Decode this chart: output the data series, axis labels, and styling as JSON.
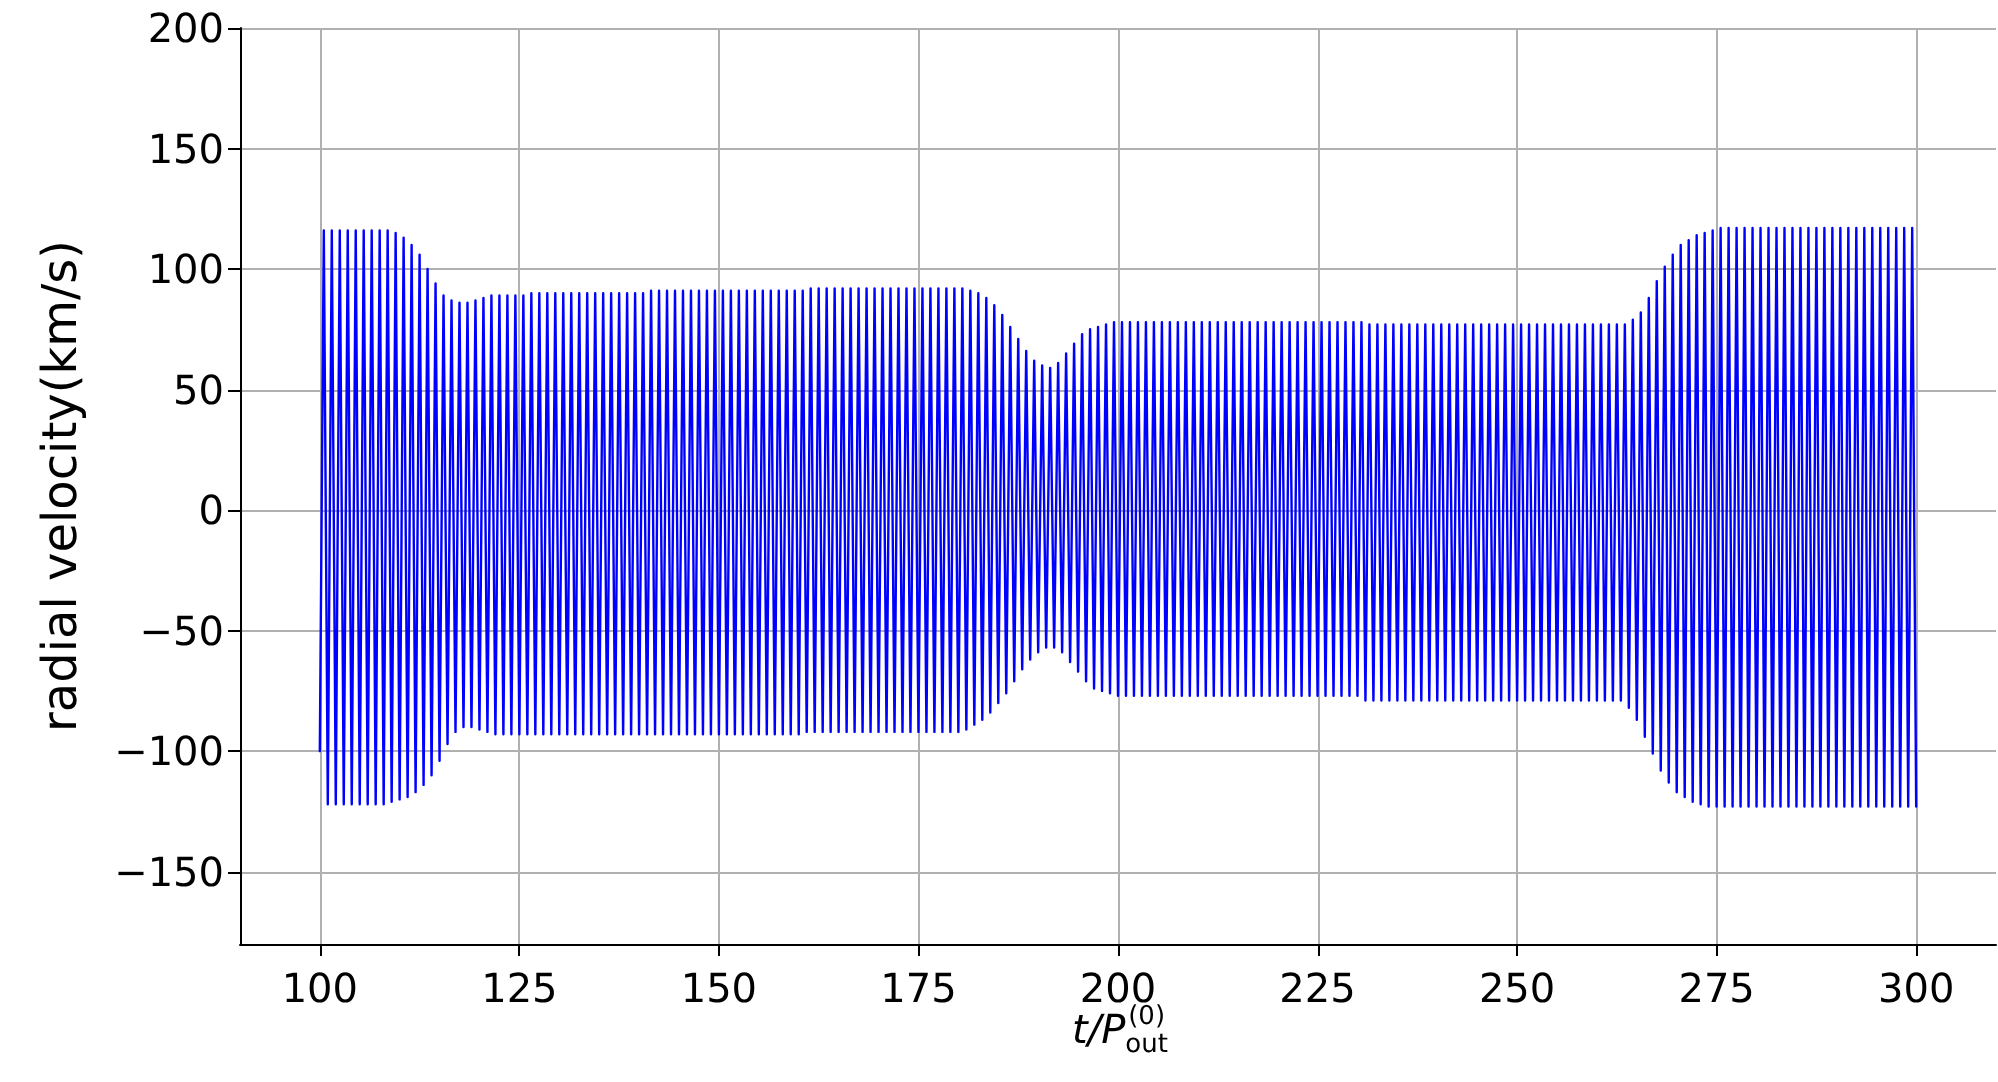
{
  "chart_data": {
    "type": "line",
    "xlabel": "t/P$_{out}$$^{(0)}$",
    "ylabel": "radial velocity(km/s)",
    "xlim": [
      90,
      310
    ],
    "ylim": [
      -180,
      200
    ],
    "xticks": [
      100,
      125,
      150,
      175,
      200,
      225,
      250,
      275,
      300
    ],
    "yticks": [
      -150,
      -100,
      -50,
      0,
      50,
      100,
      150,
      200
    ],
    "grid": true,
    "marker": "none",
    "line_style": "solid",
    "x": [
      100,
      100.5,
      101,
      101.5,
      102,
      102.5,
      103,
      103.5,
      104,
      104.5,
      105,
      105.5,
      106,
      106.5,
      107,
      107.5,
      108,
      108.5,
      109,
      109.5,
      110,
      110.5,
      111,
      111.5,
      112,
      112.5,
      113,
      113.5,
      114,
      114.5,
      115,
      115.5,
      116,
      116.5,
      117,
      117.5,
      118,
      118.5,
      119,
      119.5,
      120,
      120.5,
      121,
      121.5,
      122,
      122.5,
      123,
      123.5,
      124,
      124.5,
      125,
      125.5,
      126,
      126.5,
      127,
      127.5,
      128,
      128.5,
      129,
      129.5,
      130,
      130.5,
      131,
      131.5,
      132,
      132.5,
      133,
      133.5,
      134,
      134.5,
      135,
      135.5,
      136,
      136.5,
      137,
      137.5,
      138,
      138.5,
      139,
      139.5,
      140,
      140.5,
      141,
      141.5,
      142,
      142.5,
      143,
      143.5,
      144,
      144.5,
      145,
      145.5,
      146,
      146.5,
      147,
      147.5,
      148,
      148.5,
      149,
      149.5,
      150,
      150.5,
      151,
      151.5,
      152,
      152.5,
      153,
      153.5,
      154,
      154.5,
      155,
      155.5,
      156,
      156.5,
      157,
      157.5,
      158,
      158.5,
      159,
      159.5,
      160,
      160.5,
      161,
      161.5,
      162,
      162.5,
      163,
      163.5,
      164,
      164.5,
      165,
      165.5,
      166,
      166.5,
      167,
      167.5,
      168,
      168.5,
      169,
      169.5,
      170,
      170.5,
      171,
      171.5,
      172,
      172.5,
      173,
      173.5,
      174,
      174.5,
      175,
      175.5,
      176,
      176.5,
      177,
      177.5,
      178,
      178.5,
      179,
      179.5,
      180,
      180.5,
      181,
      181.5,
      182,
      182.5,
      183,
      183.5,
      184,
      184.5,
      185,
      185.5,
      186,
      186.5,
      187,
      187.5,
      188,
      188.5,
      189,
      189.5,
      190,
      190.5,
      191,
      191.5,
      192,
      192.5,
      193,
      193.5,
      194,
      194.5,
      195,
      195.5,
      196,
      196.5,
      197,
      197.5,
      198,
      198.5,
      199,
      199.5,
      200,
      200.5,
      201,
      201.5,
      202,
      202.5,
      203,
      203.5,
      204,
      204.5,
      205,
      205.5,
      206,
      206.5,
      207,
      207.5,
      208,
      208.5,
      209,
      209.5,
      210,
      210.5,
      211,
      211.5,
      212,
      212.5,
      213,
      213.5,
      214,
      214.5,
      215,
      215.5,
      216,
      216.5,
      217,
      217.5,
      218,
      218.5,
      219,
      219.5,
      220,
      220.5,
      221,
      221.5,
      222,
      222.5,
      223,
      223.5,
      224,
      224.5,
      225,
      225.5,
      226,
      226.5,
      227,
      227.5,
      228,
      228.5,
      229,
      229.5,
      230,
      230.5,
      231,
      231.5,
      232,
      232.5,
      233,
      233.5,
      234,
      234.5,
      235,
      235.5,
      236,
      236.5,
      237,
      237.5,
      238,
      238.5,
      239,
      239.5,
      240,
      240.5,
      241,
      241.5,
      242,
      242.5,
      243,
      243.5,
      244,
      244.5,
      245,
      245.5,
      246,
      246.5,
      247,
      247.5,
      248,
      248.5,
      249,
      249.5,
      250,
      250.5,
      251,
      251.5,
      252,
      252.5,
      253,
      253.5,
      254,
      254.5,
      255,
      255.5,
      256,
      256.5,
      257,
      257.5,
      258,
      258.5,
      259,
      259.5,
      260,
      260.5,
      261,
      261.5,
      262,
      262.5,
      263,
      263.5,
      264,
      264.5,
      265,
      265.5,
      266,
      266.5,
      267,
      267.5,
      268,
      268.5,
      269,
      269.5,
      270,
      270.5,
      271,
      271.5,
      272,
      272.5,
      273,
      273.5,
      274,
      274.5,
      275,
      275.5,
      276,
      276.5,
      277,
      277.5,
      278,
      278.5,
      279,
      279.5,
      280,
      280.5,
      281,
      281.5,
      282,
      282.5,
      283,
      283.5,
      284,
      284.5,
      285,
      285.5,
      286,
      286.5,
      287,
      287.5,
      288,
      288.5,
      289,
      289.5,
      290,
      290.5,
      291,
      291.5,
      292,
      292.5,
      293,
      293.5,
      294,
      294.5,
      295,
      295.5,
      296,
      296.5,
      297,
      297.5,
      298,
      298.5,
      299,
      299.5,
      300
    ],
    "series": [
      {
        "color": "#0000ff",
        "values": [
          -100,
          116,
          -122,
          116,
          -122,
          116,
          -122,
          116,
          -122,
          116,
          -122,
          116,
          -122,
          116,
          -122,
          116,
          -122,
          116,
          -121,
          115,
          -120,
          113,
          -119,
          110,
          -117,
          106,
          -114,
          100,
          -110,
          94,
          -104,
          89,
          -97,
          87,
          -92,
          86,
          -90,
          86,
          -90,
          87,
          -91,
          88,
          -92,
          89,
          -93,
          89,
          -93,
          89,
          -93,
          89,
          -93,
          89,
          -93,
          90,
          -93,
          90,
          -93,
          90,
          -93,
          90,
          -93,
          90,
          -93,
          90,
          -93,
          90,
          -93,
          90,
          -93,
          90,
          -93,
          90,
          -93,
          90,
          -93,
          90,
          -93,
          90,
          -93,
          90,
          -93,
          90,
          -93,
          91,
          -93,
          91,
          -93,
          91,
          -93,
          91,
          -93,
          91,
          -93,
          91,
          -93,
          91,
          -93,
          91,
          -93,
          91,
          -93,
          91,
          -93,
          91,
          -93,
          91,
          -93,
          91,
          -93,
          91,
          -93,
          91,
          -93,
          91,
          -93,
          91,
          -93,
          91,
          -93,
          91,
          -93,
          91,
          -92,
          92,
          -92,
          92,
          -92,
          92,
          -92,
          92,
          -92,
          92,
          -92,
          92,
          -92,
          92,
          -92,
          92,
          -92,
          92,
          -92,
          92,
          -92,
          92,
          -92,
          92,
          -92,
          92,
          -92,
          92,
          -92,
          92,
          -92,
          92,
          -92,
          92,
          -92,
          92,
          -92,
          92,
          -92,
          92,
          -91,
          91,
          -89,
          90,
          -87,
          88,
          -84,
          85,
          -80,
          81,
          -76,
          76,
          -71,
          71,
          -66,
          66,
          -62,
          62,
          -59,
          60,
          -57,
          59,
          -57,
          61,
          -59,
          65,
          -63,
          69,
          -67,
          73,
          -71,
          75,
          -74,
          76,
          -75,
          77,
          -76,
          78,
          -77,
          78,
          -77,
          78,
          -77,
          78,
          -77,
          78,
          -77,
          78,
          -77,
          78,
          -77,
          78,
          -77,
          78,
          -77,
          78,
          -77,
          78,
          -77,
          78,
          -77,
          78,
          -77,
          78,
          -77,
          78,
          -77,
          78,
          -77,
          78,
          -77,
          78,
          -77,
          78,
          -77,
          78,
          -77,
          78,
          -77,
          78,
          -77,
          78,
          -77,
          78,
          -77,
          78,
          -77,
          78,
          -77,
          78,
          -77,
          78,
          -77,
          78,
          -77,
          78,
          -77,
          78,
          -77,
          78,
          -79,
          77,
          -79,
          77,
          -79,
          77,
          -79,
          77,
          -79,
          77,
          -79,
          77,
          -79,
          77,
          -79,
          77,
          -79,
          77,
          -79,
          77,
          -79,
          77,
          -79,
          77,
          -79,
          77,
          -79,
          77,
          -79,
          77,
          -79,
          77,
          -79,
          77,
          -79,
          77,
          -79,
          77,
          -79,
          77,
          -79,
          77,
          -79,
          77,
          -79,
          77,
          -79,
          77,
          -79,
          77,
          -79,
          77,
          -79,
          77,
          -79,
          77,
          -79,
          77,
          -79,
          77,
          -79,
          77,
          -79,
          77,
          -79,
          77,
          -82,
          79,
          -87,
          82,
          -94,
          88,
          -101,
          95,
          -108,
          101,
          -113,
          106,
          -117,
          110,
          -119,
          112,
          -121,
          114,
          -122,
          115,
          -123,
          116,
          -123,
          117,
          -123,
          117,
          -123,
          117,
          -123,
          117,
          -123,
          117,
          -123,
          117,
          -123,
          117,
          -123,
          117,
          -123,
          117,
          -123,
          117,
          -123,
          117,
          -123,
          117,
          -123,
          117,
          -123,
          117,
          -123,
          117,
          -123,
          117,
          -123,
          117,
          -123,
          117,
          -123,
          117,
          -123,
          117,
          -123,
          117,
          -123,
          117,
          -123,
          117,
          -123,
          117,
          -123,
          117,
          -123
        ]
      }
    ]
  }
}
